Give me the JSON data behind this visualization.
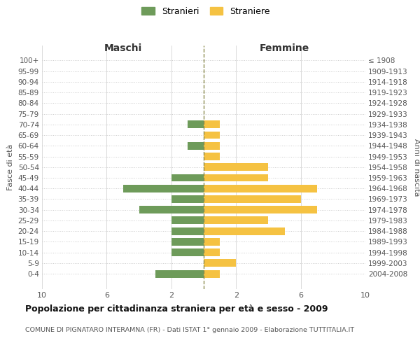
{
  "age_groups": [
    "100+",
    "95-99",
    "90-94",
    "85-89",
    "80-84",
    "75-79",
    "70-74",
    "65-69",
    "60-64",
    "55-59",
    "50-54",
    "45-49",
    "40-44",
    "35-39",
    "30-34",
    "25-29",
    "20-24",
    "15-19",
    "10-14",
    "5-9",
    "0-4"
  ],
  "birth_years": [
    "≤ 1908",
    "1909-1913",
    "1914-1918",
    "1919-1923",
    "1924-1928",
    "1929-1933",
    "1934-1938",
    "1939-1943",
    "1944-1948",
    "1949-1953",
    "1954-1958",
    "1959-1963",
    "1964-1968",
    "1969-1973",
    "1974-1978",
    "1979-1983",
    "1984-1988",
    "1989-1993",
    "1994-1998",
    "1999-2003",
    "2004-2008"
  ],
  "maschi": [
    0,
    0,
    0,
    0,
    0,
    0,
    1,
    0,
    1,
    0,
    0,
    2,
    5,
    2,
    4,
    2,
    2,
    2,
    2,
    0,
    3
  ],
  "femmine": [
    0,
    0,
    0,
    0,
    0,
    0,
    1,
    1,
    1,
    1,
    4,
    4,
    7,
    6,
    7,
    4,
    5,
    1,
    1,
    2,
    1
  ],
  "maschi_color": "#6e9b5a",
  "femmine_color": "#f5c242",
  "background_color": "#ffffff",
  "grid_color": "#cccccc",
  "grid_color_dotted": "#cccccc",
  "dashed_line_color": "#8b8b4e",
  "title": "Popolazione per cittadinanza straniera per età e sesso - 2009",
  "subtitle": "COMUNE DI PIGNATARO INTERAMNA (FR) - Dati ISTAT 1° gennaio 2009 - Elaborazione TUTTITALIA.IT",
  "legend_stranieri": "Stranieri",
  "legend_straniere": "Straniere",
  "xlabel_left": "Maschi",
  "xlabel_right": "Femmine",
  "ylabel_left": "Fasce di età",
  "ylabel_right": "Anni di nascita",
  "xlim": 10,
  "xtick_positions": [
    -10,
    -6,
    -2,
    2,
    6,
    10
  ],
  "xtick_labels": [
    "10",
    "6",
    "2",
    "2",
    "6",
    "10"
  ]
}
